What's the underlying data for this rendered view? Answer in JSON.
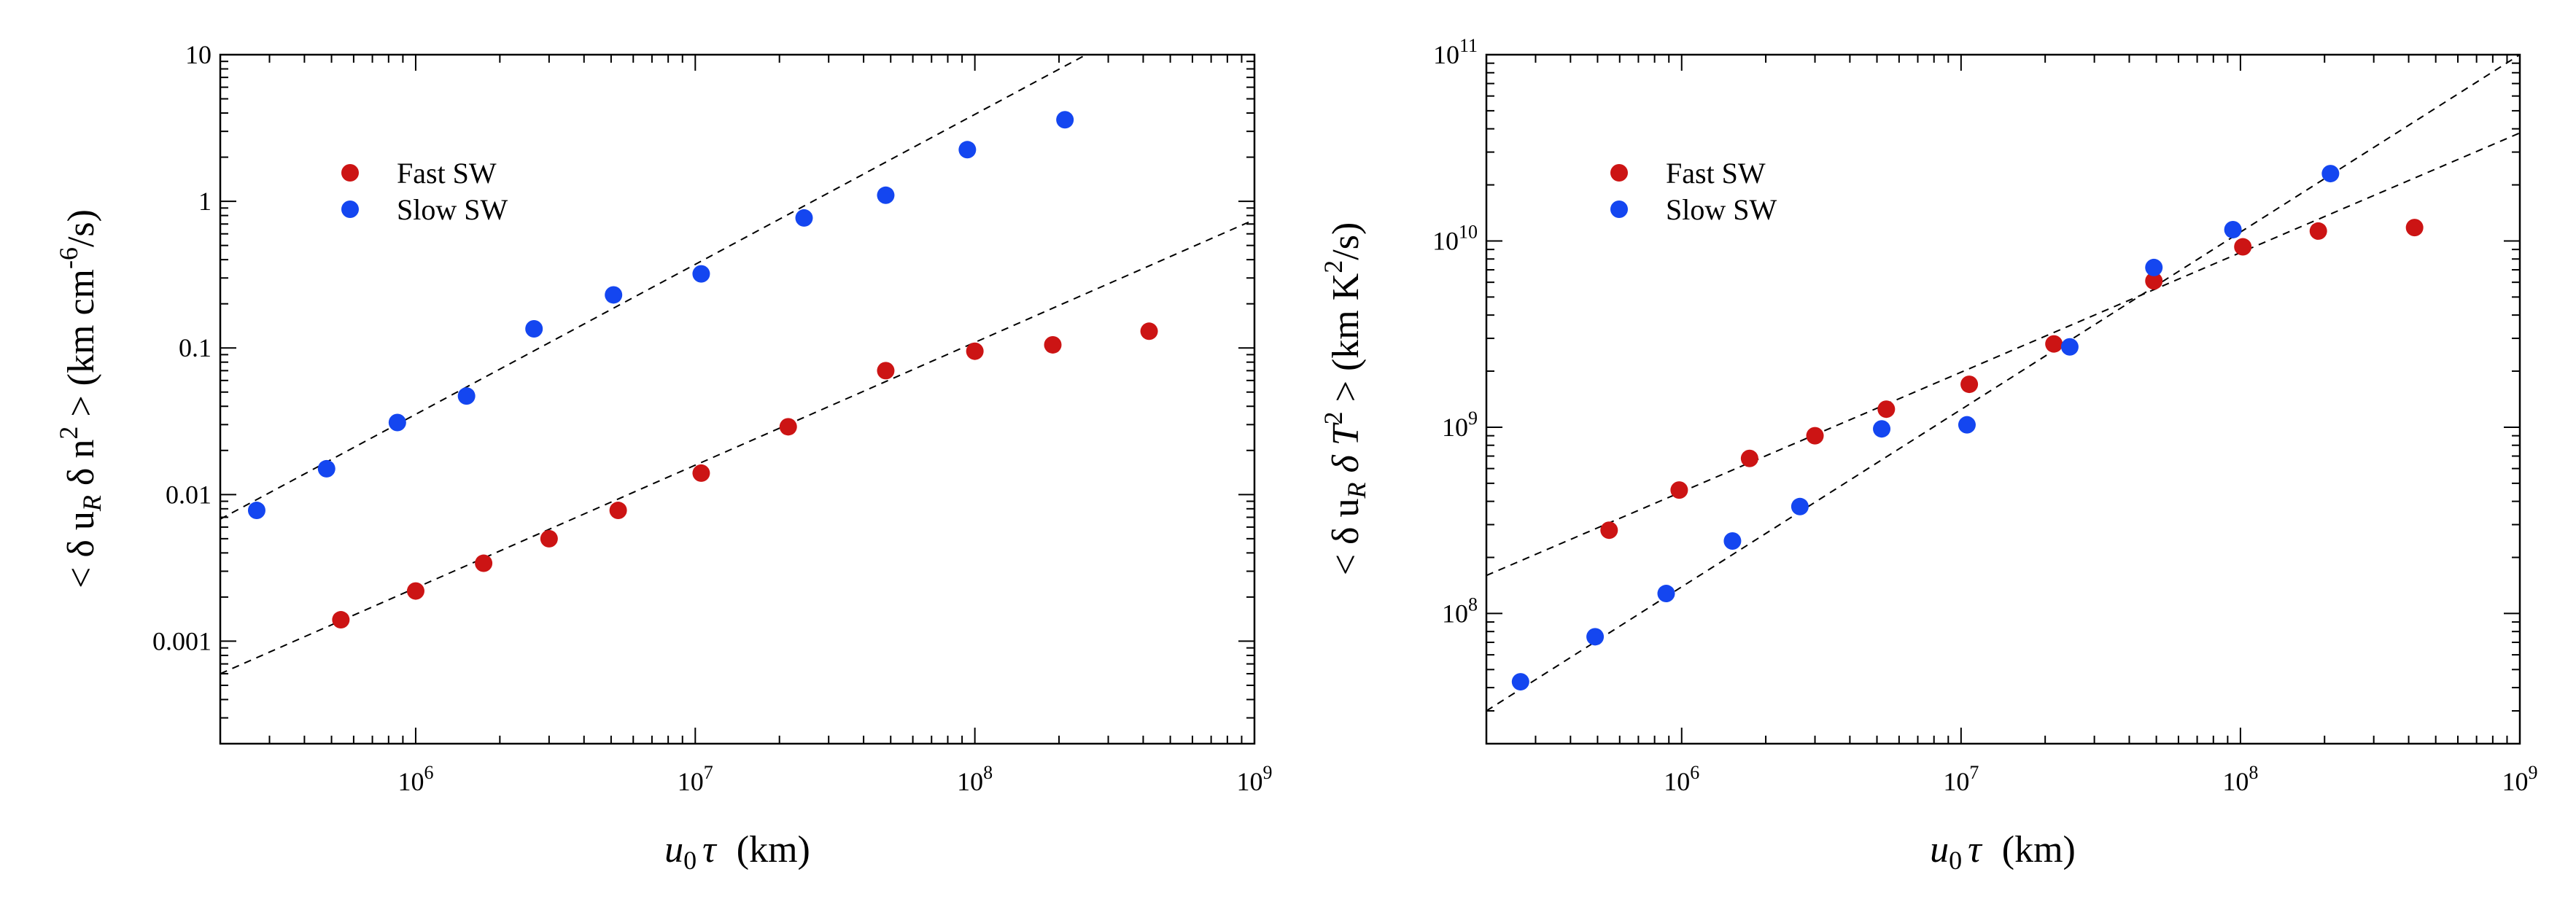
{
  "colors": {
    "fast": "#cc1414",
    "slow": "#1446f0",
    "fit": "#000000",
    "frame": "#000000"
  },
  "chart_data": [
    {
      "type": "scatter",
      "x_scale": "log",
      "y_scale": "log",
      "xlim": [
        200000,
        1000000000
      ],
      "ylim": [
        0.0002,
        10
      ],
      "xlabel": {
        "var": "u",
        "sub": "0",
        "sym": "τ",
        "unit": "(km)"
      },
      "ylabel": {
        "text": "< δ u",
        "sub": "R",
        "mid": " δ n",
        "sup": "2",
        "rest": " > (km cm",
        "unit_sup": "-6",
        "tail": "/s)"
      },
      "x_ticks": [
        {
          "value": 1000000,
          "base": "10",
          "exp": "6"
        },
        {
          "value": 10000000,
          "base": "10",
          "exp": "7"
        },
        {
          "value": 100000000,
          "base": "10",
          "exp": "8"
        },
        {
          "value": 1000000000,
          "base": "10",
          "exp": "9"
        }
      ],
      "y_ticks": [
        {
          "value": 0.001,
          "label": "0.001"
        },
        {
          "value": 0.01,
          "label": "0.01"
        },
        {
          "value": 0.1,
          "label": "0.1"
        },
        {
          "value": 1,
          "label": "1"
        },
        {
          "value": 10,
          "label": "10"
        }
      ],
      "legend": {
        "position": "top-left",
        "entries": [
          "Fast SW",
          "Slow SW"
        ]
      },
      "series": [
        {
          "name": "Fast SW",
          "color_key": "fast",
          "x": [
            540000,
            1000000,
            1750000,
            3000000,
            5300000,
            10500000,
            21500000,
            48000000,
            100000000,
            190000000,
            420000000
          ],
          "y": [
            0.0014,
            0.0022,
            0.0034,
            0.005,
            0.0078,
            0.014,
            0.029,
            0.07,
            0.095,
            0.105,
            0.13
          ]
        },
        {
          "name": "Slow SW",
          "color_key": "slow",
          "x": [
            270000,
            480000,
            860000,
            1520000,
            2650000,
            5100000,
            10500000,
            24500000,
            48000000,
            94000000,
            210000000
          ],
          "y": [
            0.0078,
            0.015,
            0.031,
            0.047,
            0.135,
            0.23,
            0.32,
            0.77,
            1.1,
            2.25,
            3.6
          ]
        }
      ],
      "fits": [
        {
          "name": "fast-fit",
          "x": [
            200000,
            1000000000
          ],
          "y": [
            0.0006,
            0.75
          ]
        },
        {
          "name": "slow-fit",
          "x": [
            200000,
            250000000
          ],
          "y": [
            0.0068,
            10
          ]
        }
      ]
    },
    {
      "type": "scatter",
      "x_scale": "log",
      "y_scale": "log",
      "xlim": [
        200000,
        1000000000
      ],
      "ylim": [
        20000000,
        100000000000
      ],
      "xlabel": {
        "var": "u",
        "sub": "0",
        "sym": "τ",
        "unit": "(km)"
      },
      "ylabel": {
        "text": "< δ u",
        "sub": "R",
        "mid": " δ T",
        "sup": "2",
        "rest": " > (km K",
        "unit_sup": "2",
        "tail": "/s)"
      },
      "x_ticks": [
        {
          "value": 1000000,
          "base": "10",
          "exp": "6"
        },
        {
          "value": 10000000,
          "base": "10",
          "exp": "7"
        },
        {
          "value": 100000000,
          "base": "10",
          "exp": "8"
        },
        {
          "value": 1000000000,
          "base": "10",
          "exp": "9"
        }
      ],
      "y_ticks": [
        {
          "value": 100000000,
          "base": "10",
          "exp": "8"
        },
        {
          "value": 1000000000,
          "base": "10",
          "exp": "9"
        },
        {
          "value": 10000000000,
          "base": "10",
          "exp": "10"
        },
        {
          "value": 100000000000,
          "base": "10",
          "exp": "11"
        }
      ],
      "legend": {
        "position": "top-left",
        "entries": [
          "Fast SW",
          "Slow SW"
        ]
      },
      "series": [
        {
          "name": "Fast SW",
          "color_key": "fast",
          "x": [
            550000,
            980000,
            1750000,
            3000000,
            5400000,
            10700000,
            21500000,
            49000000,
            102000000,
            190000000,
            420000000
          ],
          "y": [
            280000000,
            460000000,
            680000000,
            900000000,
            1250000000,
            1700000000,
            2800000000,
            6100000000,
            9300000000,
            11300000000,
            11800000000
          ]
        },
        {
          "name": "Slow SW",
          "color_key": "slow",
          "x": [
            265000,
            490000,
            880000,
            1520000,
            2650000,
            5200000,
            10500000,
            24500000,
            49000000,
            94000000,
            210000000
          ],
          "y": [
            43000000,
            75000000,
            128000000,
            245000000,
            375000000,
            980000000,
            1030000000,
            2700000000,
            7200000000,
            11500000000,
            23000000000
          ]
        }
      ],
      "fits": [
        {
          "name": "fast-fit",
          "x": [
            200000,
            1000000000
          ],
          "y": [
            160000000,
            38000000000
          ]
        },
        {
          "name": "slow-fit",
          "x": [
            200000,
            1000000000
          ],
          "y": [
            30000000,
            100000000000
          ]
        }
      ]
    }
  ]
}
